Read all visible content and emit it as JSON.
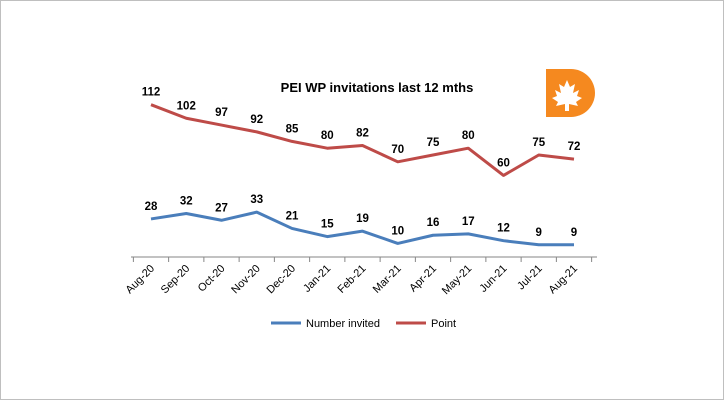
{
  "chart_data": {
    "type": "line",
    "title": "PEI WP invitations last 12 mths",
    "categories": [
      "Aug-20",
      "Sep-20",
      "Oct-20",
      "Nov-20",
      "Dec-20",
      "Jan-21",
      "Feb-21",
      "Mar-21",
      "Apr-21",
      "May-21",
      "Jun-21",
      "Jul-21",
      "Aug-21"
    ],
    "series": [
      {
        "name": "Number invited",
        "color": "#4a7ebb",
        "values": [
          28,
          32,
          27,
          33,
          21,
          15,
          19,
          10,
          16,
          17,
          12,
          9,
          9
        ]
      },
      {
        "name": "Point",
        "color": "#be4b48",
        "values": [
          112,
          102,
          97,
          92,
          85,
          80,
          82,
          70,
          75,
          80,
          60,
          75,
          72
        ]
      }
    ],
    "ylim": [
      0,
      120
    ],
    "grid": false,
    "legend": "bottom",
    "logo": {
      "letter": "D",
      "color": "#f5891f",
      "icon": "maple-leaf-icon"
    }
  }
}
